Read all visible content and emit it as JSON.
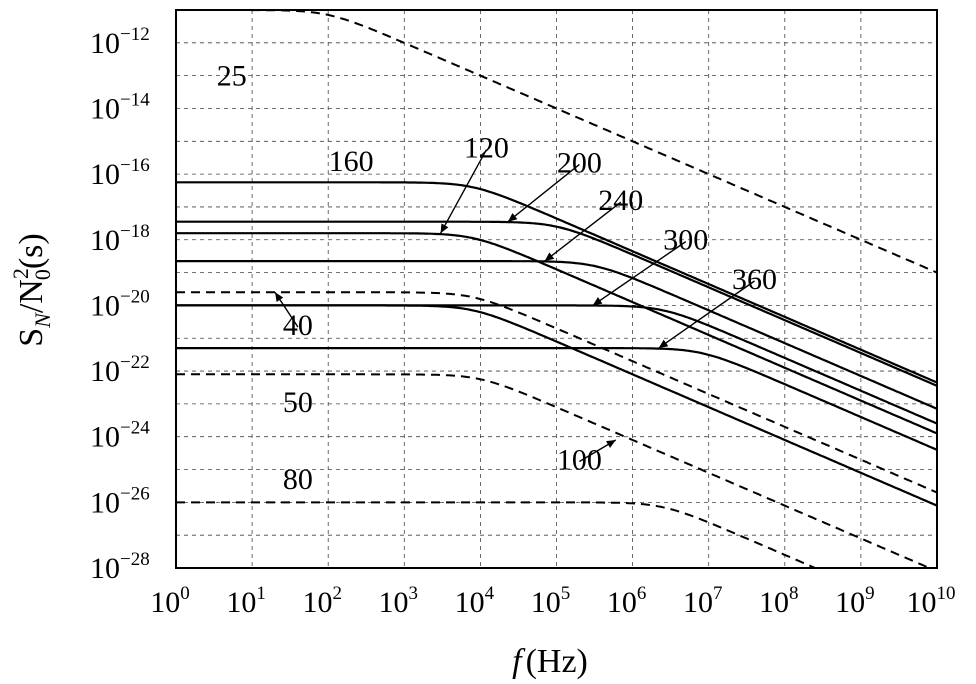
{
  "chart_data": {
    "type": "line",
    "title": "",
    "x_scale": "log",
    "y_scale": "log",
    "xlim": [
      1,
      10000000000
    ],
    "ylim": [
      1e-28,
      1e-11
    ],
    "grid": true,
    "xlabel": {
      "main": "f",
      "unit": "(Hz)"
    },
    "ylabel": {
      "S": "S",
      "sub": "N",
      "N": "/N",
      "sup": "2",
      "sub0": "0",
      "unit": "(s)"
    },
    "x_ticks": [
      {
        "base": "10",
        "exp": "0"
      },
      {
        "base": "10",
        "exp": "1"
      },
      {
        "base": "10",
        "exp": "2"
      },
      {
        "base": "10",
        "exp": "3"
      },
      {
        "base": "10",
        "exp": "4"
      },
      {
        "base": "10",
        "exp": "5"
      },
      {
        "base": "10",
        "exp": "6"
      },
      {
        "base": "10",
        "exp": "7"
      },
      {
        "base": "10",
        "exp": "8"
      },
      {
        "base": "10",
        "exp": "9"
      },
      {
        "base": "10",
        "exp": "10"
      }
    ],
    "y_ticks": [
      {
        "base": "10",
        "exp": "−12"
      },
      {
        "base": "10",
        "exp": "−14"
      },
      {
        "base": "10",
        "exp": "−16"
      },
      {
        "base": "10",
        "exp": "−18"
      },
      {
        "base": "10",
        "exp": "−20"
      },
      {
        "base": "10",
        "exp": "−22"
      },
      {
        "base": "10",
        "exp": "−24"
      },
      {
        "base": "10",
        "exp": "−26"
      },
      {
        "base": "10",
        "exp": "−28"
      }
    ],
    "series": [
      {
        "name": "25",
        "style": "dashed",
        "plateau_log10": -11.0,
        "corner_log10_hz": 2.0
      },
      {
        "name": "40",
        "style": "dashed",
        "plateau_log10": -19.6,
        "corner_log10_hz": 3.9
      },
      {
        "name": "50",
        "style": "dashed",
        "plateau_log10": -22.1,
        "corner_log10_hz": 4.0
      },
      {
        "name": "80",
        "style": "dashed",
        "plateau_log10": -26.0,
        "corner_log10_hz": 6.4
      },
      {
        "name": "100",
        "style": "solid",
        "plateau_log10": -20.0,
        "corner_log10_hz": 3.9
      },
      {
        "name": "120",
        "style": "solid",
        "plateau_log10": -17.8,
        "corner_log10_hz": 3.9
      },
      {
        "name": "160",
        "style": "solid",
        "plateau_log10": -16.25,
        "corner_log10_hz": 3.9
      },
      {
        "name": "200",
        "style": "solid",
        "plateau_log10": -17.45,
        "corner_log10_hz": 5.0
      },
      {
        "name": "240",
        "style": "solid",
        "plateau_log10": -18.65,
        "corner_log10_hz": 5.5
      },
      {
        "name": "300",
        "style": "solid",
        "plateau_log10": -20.0,
        "corner_log10_hz": 6.4
      },
      {
        "name": "360",
        "style": "solid",
        "plateau_log10": -21.3,
        "corner_log10_hz": 6.9
      }
    ],
    "slope_per_decade": -2,
    "curve_labels": [
      {
        "text": "25",
        "x": 5.4,
        "y": -13.3,
        "arrow_to": null
      },
      {
        "text": "160",
        "x": 200,
        "y": -15.9,
        "arrow_to": null
      },
      {
        "text": "120",
        "x": 12000,
        "y": -15.5,
        "arrow_to": [
          3000,
          -17.8
        ]
      },
      {
        "text": "200",
        "x": 200000,
        "y": -15.95,
        "arrow_to": [
          23000,
          -17.45
        ]
      },
      {
        "text": "240",
        "x": 700000,
        "y": -17.1,
        "arrow_to": [
          70000,
          -18.65
        ]
      },
      {
        "text": "300",
        "x": 5000000,
        "y": -18.3,
        "arrow_to": [
          300000,
          -20.0
        ]
      },
      {
        "text": "360",
        "x": 40000000,
        "y": -19.5,
        "arrow_to": [
          2200000,
          -21.3
        ]
      },
      {
        "text": "40",
        "x": 40,
        "y": -20.9,
        "arrow_to": [
          20,
          -19.6
        ]
      },
      {
        "text": "50",
        "x": 40,
        "y": -23.25,
        "arrow_to": null
      },
      {
        "text": "80",
        "x": 40,
        "y": -25.6,
        "arrow_to": null
      },
      {
        "text": "100",
        "x": 200000,
        "y": -25.0,
        "arrow_to": [
          600000,
          -24.1
        ]
      }
    ]
  }
}
